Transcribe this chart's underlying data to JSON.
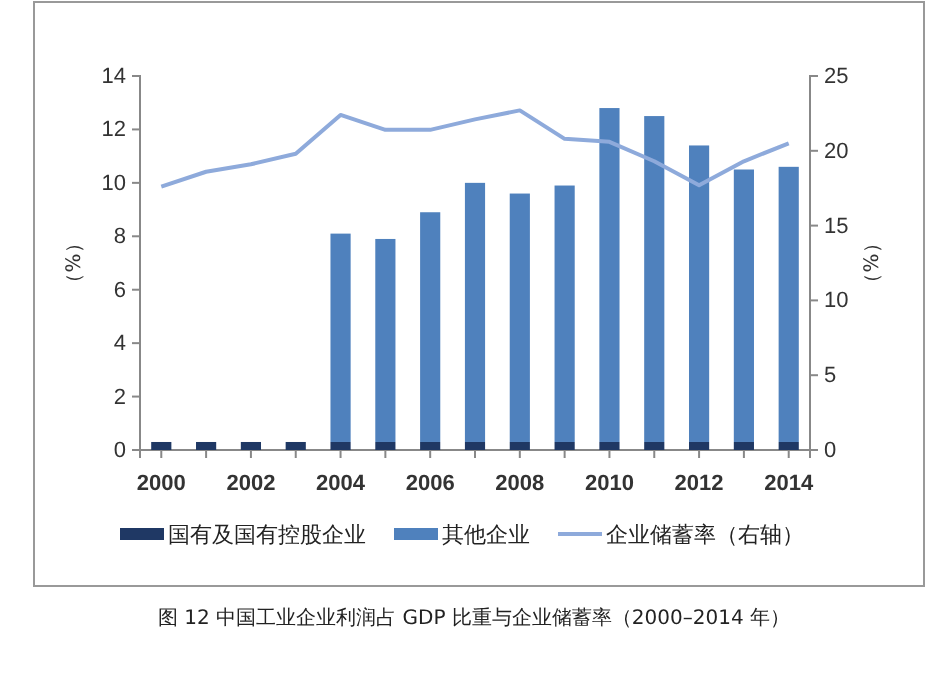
{
  "chart_data": {
    "type": "bar",
    "stacked": true,
    "title": "图 12 中国工业企业利润占 GDP 比重与企业储蓄率（2000–2014 年）",
    "ylabel": "（%）",
    "y2label": "（%）",
    "categories": [
      "2000",
      null,
      "2002",
      null,
      "2004",
      null,
      "2006",
      null,
      "2008",
      null,
      "2010",
      null,
      "2012",
      null,
      "2014"
    ],
    "series": [
      {
        "name": "国有及国有控股企业",
        "color": "#1f3864",
        "values": [
          0.3,
          0.3,
          0.3,
          0.3,
          0.3,
          0.3,
          0.3,
          0.3,
          0.3,
          0.3,
          0.3,
          0.3,
          0.3,
          0.3,
          0.3
        ]
      },
      {
        "name": "其他企业",
        "color": "#4f81bd",
        "values": [
          null,
          null,
          null,
          null,
          7.8,
          7.6,
          8.6,
          9.7,
          9.3,
          9.6,
          12.5,
          12.2,
          11.1,
          10.2,
          10.3
        ]
      },
      {
        "name": "企业储蓄率（右轴）",
        "type": "line",
        "axis": "y2",
        "color": "#8eaadb",
        "values": [
          17.6,
          18.6,
          19.1,
          19.8,
          22.4,
          21.4,
          21.4,
          22.1,
          22.7,
          20.8,
          20.6,
          19.3,
          17.7,
          19.3,
          20.5
        ]
      }
    ],
    "ylim": [
      0,
      14
    ],
    "yticks": [
      0,
      2,
      4,
      6,
      8,
      10,
      12,
      14
    ],
    "y2lim": [
      0,
      25
    ],
    "y2ticks": [
      0,
      5,
      10,
      15,
      20,
      25
    ],
    "grid": false,
    "legend": "bottom",
    "marker": "none",
    "line_style": "solid"
  }
}
